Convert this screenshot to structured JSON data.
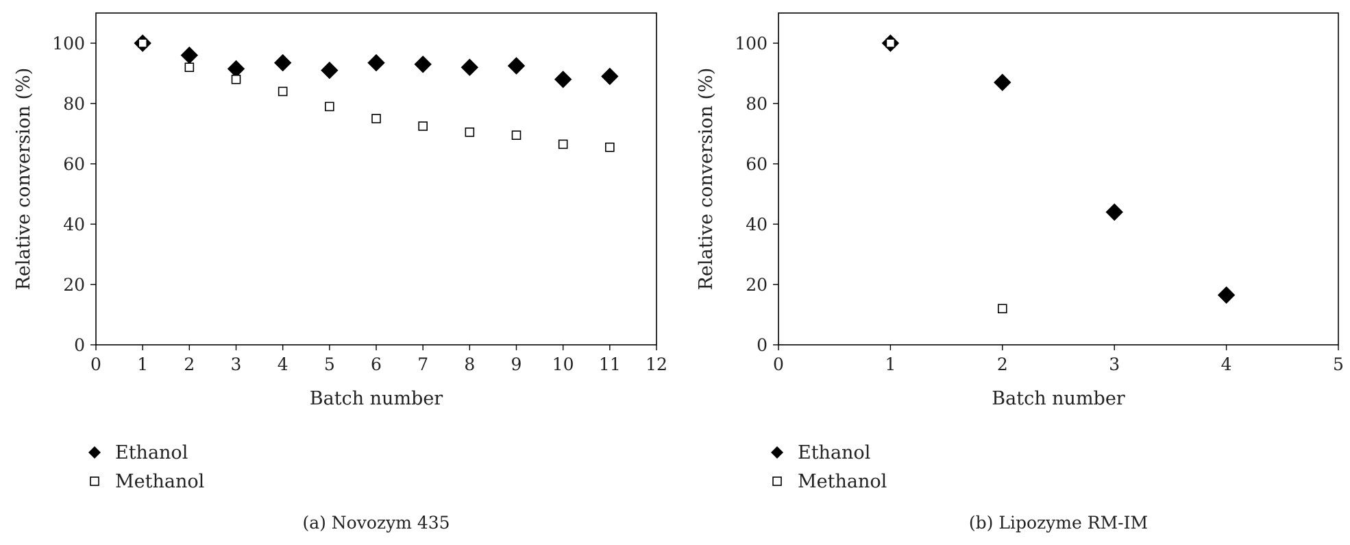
{
  "chart_data": [
    {
      "type": "scatter",
      "xlabel": "Batch number",
      "ylabel": "Relative conversion (%)",
      "caption": "(a)  Novozym 435",
      "xlim": [
        0,
        12
      ],
      "ylim": [
        0,
        110
      ],
      "xticks": [
        0,
        1,
        2,
        3,
        4,
        5,
        6,
        7,
        8,
        9,
        10,
        11,
        12
      ],
      "yticks": [
        0,
        20,
        40,
        60,
        80,
        100
      ],
      "grid": false,
      "legend_position": "bottom-left",
      "series": [
        {
          "name": "Ethanol",
          "marker": "diamond-filled",
          "x": [
            1,
            2,
            3,
            4,
            5,
            6,
            7,
            8,
            9,
            10,
            11
          ],
          "y": [
            100,
            96,
            91.5,
            93.5,
            91,
            93.5,
            93,
            92,
            92.5,
            88,
            89
          ]
        },
        {
          "name": "Methanol",
          "marker": "square-open",
          "x": [
            1,
            2,
            3,
            4,
            5,
            6,
            7,
            8,
            9,
            10,
            11
          ],
          "y": [
            100,
            92,
            88,
            84,
            79,
            75,
            72.5,
            70.5,
            69.5,
            66.5,
            65.5
          ]
        }
      ]
    },
    {
      "type": "scatter",
      "xlabel": "Batch number",
      "ylabel": "Relative conversion (%)",
      "caption": "(b)  Lipozyme RM-IM",
      "xlim": [
        0,
        5
      ],
      "ylim": [
        0,
        110
      ],
      "xticks": [
        0,
        1,
        2,
        3,
        4,
        5
      ],
      "yticks": [
        0,
        20,
        40,
        60,
        80,
        100
      ],
      "grid": false,
      "legend_position": "bottom-left",
      "series": [
        {
          "name": "Ethanol",
          "marker": "diamond-filled",
          "x": [
            1,
            2,
            3,
            4
          ],
          "y": [
            100,
            87,
            44,
            16.5
          ]
        },
        {
          "name": "Methanol",
          "marker": "square-open",
          "x": [
            1,
            2
          ],
          "y": [
            100,
            12
          ]
        }
      ]
    }
  ]
}
